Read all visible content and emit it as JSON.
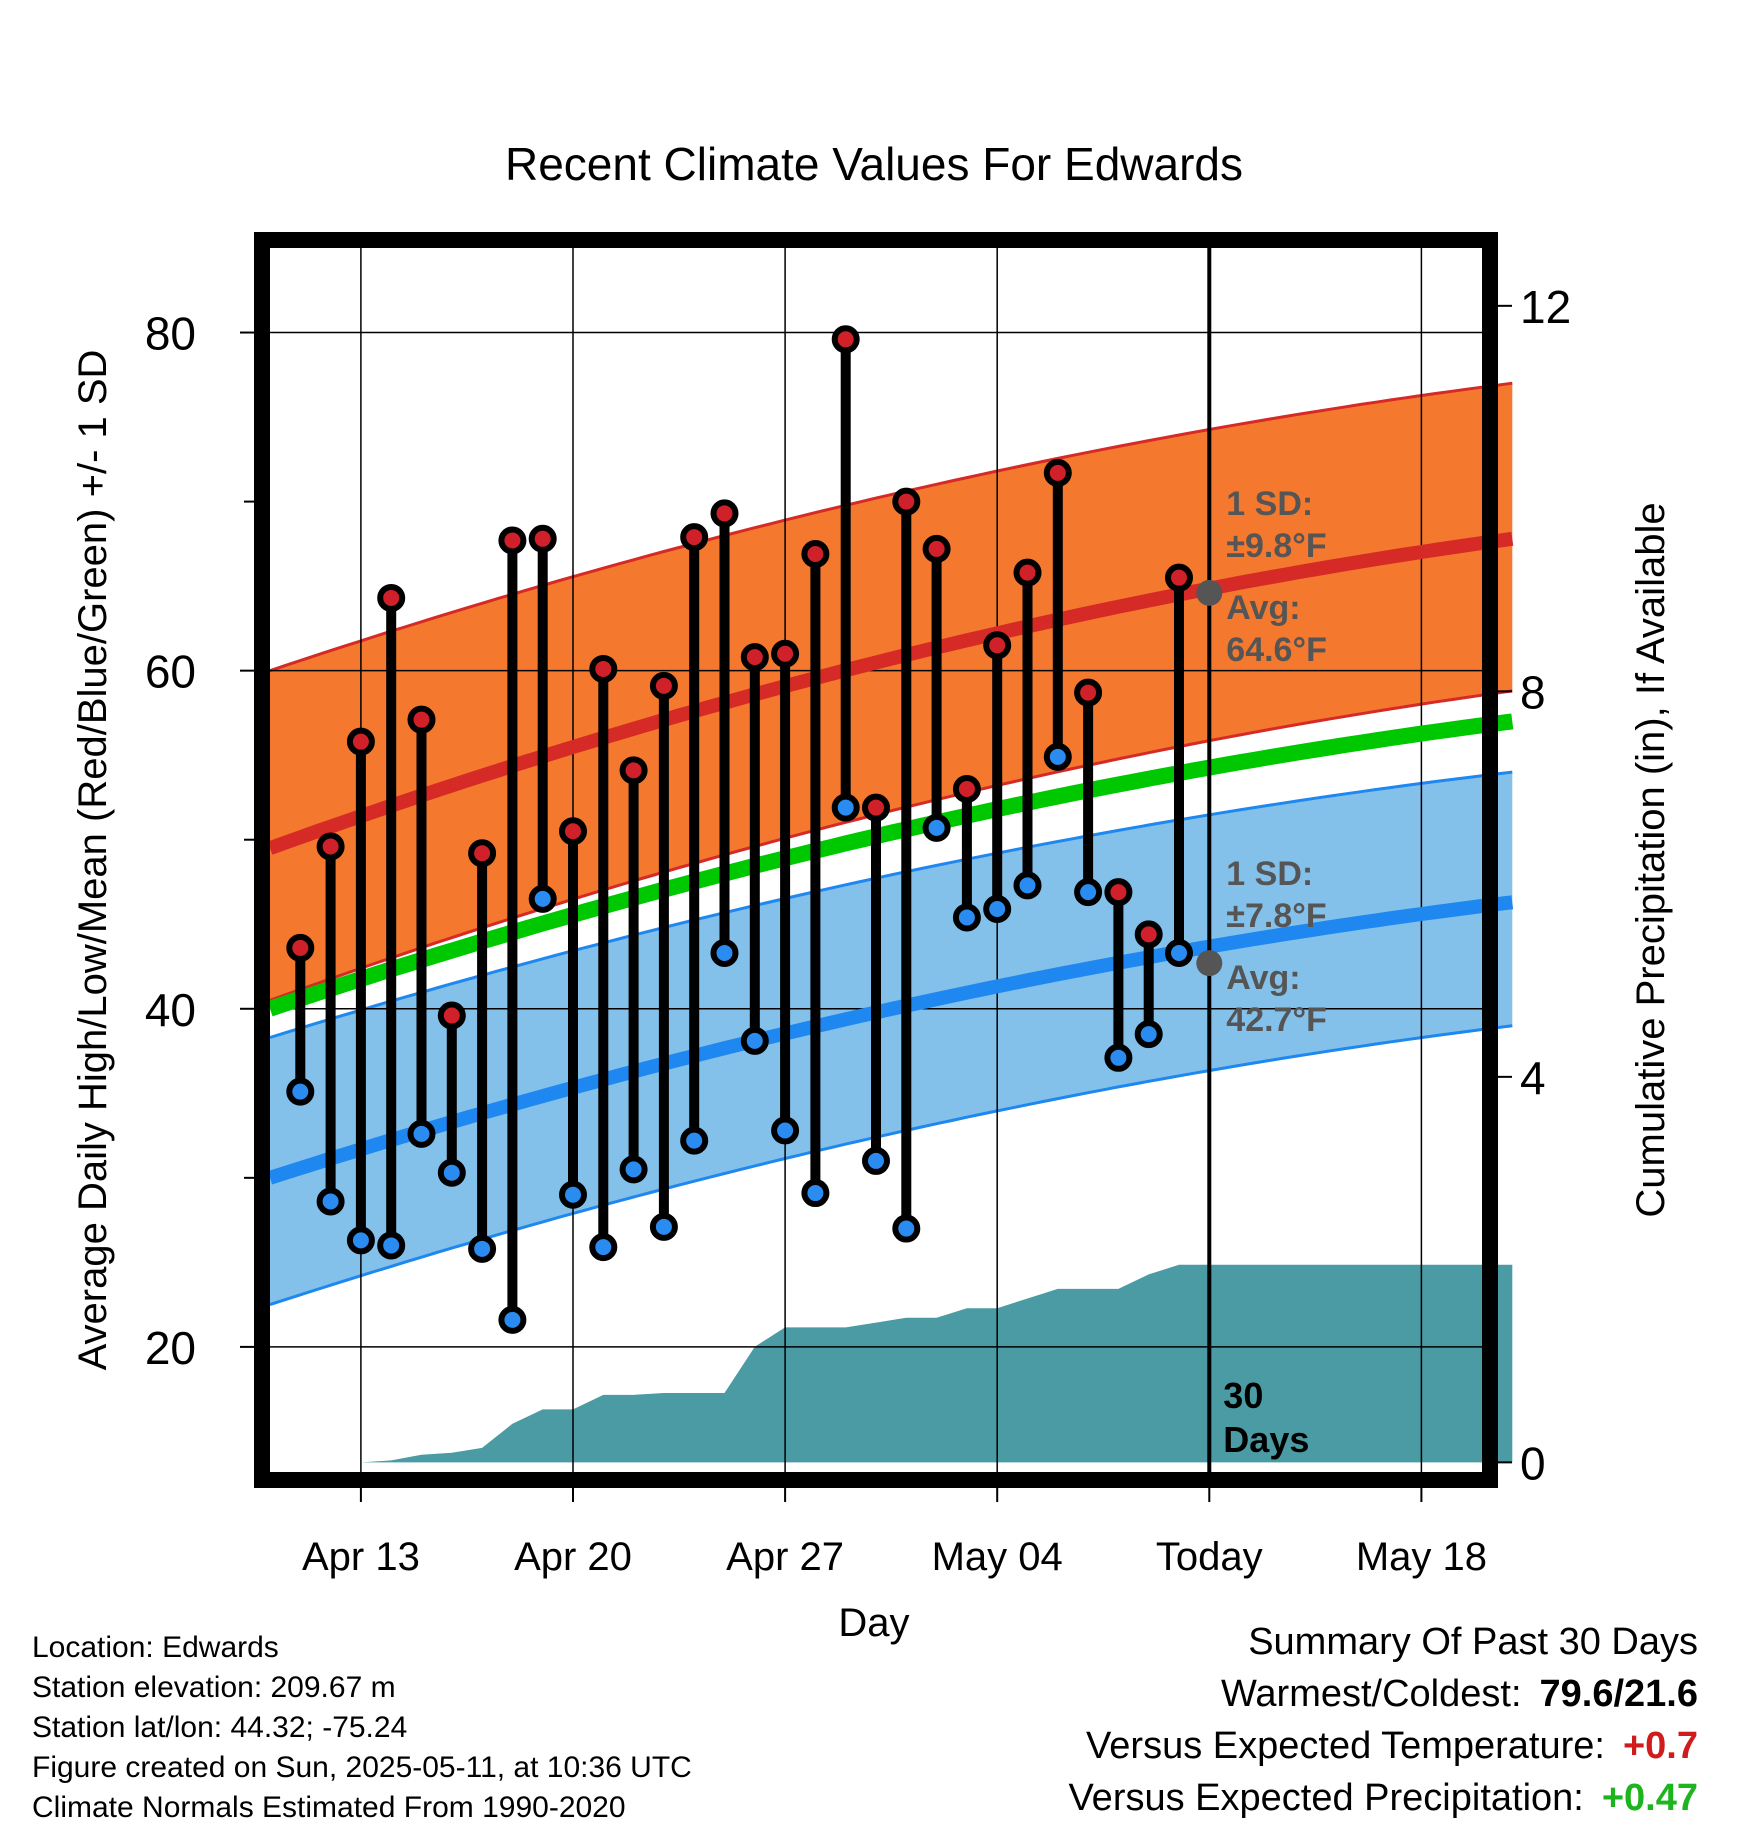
{
  "chart_data": {
    "type": "line",
    "title": "Recent Climate Values For Edwards",
    "xlabel": "Day",
    "ylabel": "Average Daily High/Low/Mean (Red/Blue/Green) +/- 1 SD",
    "ylabel_right": "Cumulative Precipitation (in), If Available",
    "x_ticks": [
      {
        "day": 3,
        "label": "Apr 13"
      },
      {
        "day": 10,
        "label": "Apr 20"
      },
      {
        "day": 17,
        "label": "Apr 27"
      },
      {
        "day": 24,
        "label": "May 04"
      },
      {
        "day": 31,
        "label": "Today"
      },
      {
        "day": 38,
        "label": "May 18"
      }
    ],
    "x_range": [
      0,
      41
    ],
    "y_range": [
      12.6,
      85
    ],
    "y_ticks": [
      20,
      40,
      60,
      80
    ],
    "y_minor_ticks": [
      30,
      50,
      70
    ],
    "y2_range": [
      -0.1,
      12.6
    ],
    "y2_ticks": [
      0,
      4,
      8,
      12
    ],
    "grid": true,
    "today_day": 31,
    "today_label": "30 Days",
    "normals": {
      "avg_high": {
        "start": 49.5,
        "end": 67.8
      },
      "high_upper": {
        "start": 60,
        "end": 77
      },
      "high_lower": {
        "start": 40.5,
        "end": 58.8
      },
      "avg_mean": {
        "start": 40,
        "end": 57
      },
      "avg_low": {
        "start": 30,
        "end": 46.3
      },
      "low_upper": {
        "start": 38.3,
        "end": 54
      },
      "low_lower": {
        "start": 22.5,
        "end": 39
      }
    },
    "today_high": {
      "avg": 64.6,
      "sd": 9.8,
      "sd_label": "1 SD:",
      "sd_text": "±9.8°F",
      "avg_label": "Avg:",
      "avg_text": "64.6°F"
    },
    "today_low": {
      "avg": 42.7,
      "sd": 7.8,
      "sd_label": "1 SD:",
      "sd_text": "±7.8°F",
      "avg_label": "Avg:",
      "avg_text": "42.7°F"
    },
    "days": [
      1,
      2,
      3,
      4,
      5,
      6,
      7,
      8,
      9,
      10,
      11,
      12,
      13,
      14,
      15,
      16,
      17,
      18,
      19,
      20,
      21,
      22,
      23,
      24,
      25,
      26,
      27,
      28,
      29,
      30
    ],
    "highs": [
      43.6,
      49.6,
      55.8,
      64.3,
      57.1,
      39.6,
      49.2,
      67.7,
      67.8,
      50.5,
      60.1,
      54.1,
      59.1,
      67.9,
      69.3,
      60.8,
      61.0,
      66.9,
      79.6,
      51.9,
      70.0,
      67.2,
      53.0,
      61.5,
      65.8,
      71.7,
      58.7,
      46.9,
      44.4,
      65.5
    ],
    "lows": [
      35.1,
      28.6,
      26.3,
      26.0,
      32.6,
      30.3,
      25.8,
      21.6,
      46.5,
      29.0,
      25.9,
      30.5,
      27.1,
      32.2,
      43.3,
      38.1,
      32.8,
      29.1,
      51.9,
      31.0,
      27.0,
      50.7,
      45.4,
      45.9,
      47.3,
      54.9,
      46.9,
      37.1,
      38.5,
      43.3
    ],
    "precip_cumulative": {
      "days": [
        0,
        3,
        4,
        5,
        6,
        7,
        8,
        9,
        10,
        11,
        12,
        13,
        14,
        15,
        16,
        17,
        18,
        19,
        20,
        21,
        22,
        23,
        24,
        25,
        26,
        27,
        28,
        29,
        30,
        31,
        41
      ],
      "values": [
        0,
        0,
        0.02,
        0.08,
        0.1,
        0.15,
        0.4,
        0.55,
        0.55,
        0.7,
        0.7,
        0.72,
        0.72,
        0.72,
        1.2,
        1.4,
        1.4,
        1.4,
        1.45,
        1.5,
        1.5,
        1.6,
        1.6,
        1.7,
        1.8,
        1.8,
        1.8,
        1.95,
        2.05,
        2.05,
        2.05
      ]
    }
  },
  "footer": {
    "location": "Location: Edwards",
    "elevation": "Station elevation: 209.67 m",
    "latlon": "Station lat/lon: 44.32; -75.24",
    "created": "Figure created on Sun, 2025-05-11, at 10:36 UTC",
    "normals": "Climate Normals Estimated From 1990-2020"
  },
  "summary": {
    "title": "Summary Of Past 30 Days",
    "warm_cold_label": "Warmest/Coldest:",
    "warm_cold_value": "79.6/21.6",
    "temp_label": "Versus Expected Temperature:",
    "temp_value": "+0.7",
    "precip_label": "Versus Expected Precipitation:",
    "precip_value": "+0.47"
  },
  "colors": {
    "high_band": "#f4782e",
    "high_line": "#d52a26",
    "low_band": "#84c1ea",
    "low_line": "#1e88f0",
    "mean_line": "#00c800",
    "precip": "#4a9ba3",
    "high_dot": "#d0202a",
    "low_dot": "#2a8cf0",
    "label_gray": "#555555",
    "positive_temp": "#d01c1c",
    "positive_precip": "#1db51d"
  }
}
